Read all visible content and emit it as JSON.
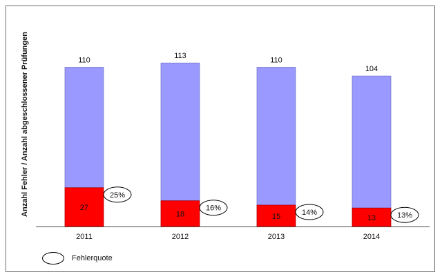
{
  "chart_data": {
    "type": "bar",
    "stacked": true,
    "categories": [
      "2011",
      "2012",
      "2013",
      "2014"
    ],
    "totals": [
      110,
      113,
      110,
      104
    ],
    "series": [
      {
        "values": [
          27,
          18,
          15,
          13
        ],
        "color": "#ff0000"
      },
      {
        "values": [
          83,
          95,
          95,
          91
        ],
        "color": "#9999ff"
      }
    ],
    "ylabel": "Anzahl Fehler / Anzahl abgeschlossener Prüfungen",
    "ylim": [
      0,
      120
    ],
    "grid": false,
    "error_rates": [
      "25%",
      "16%",
      "14%",
      "13%"
    ],
    "legend": {
      "label": "Fehlerquote",
      "position": "bottom-left"
    }
  }
}
